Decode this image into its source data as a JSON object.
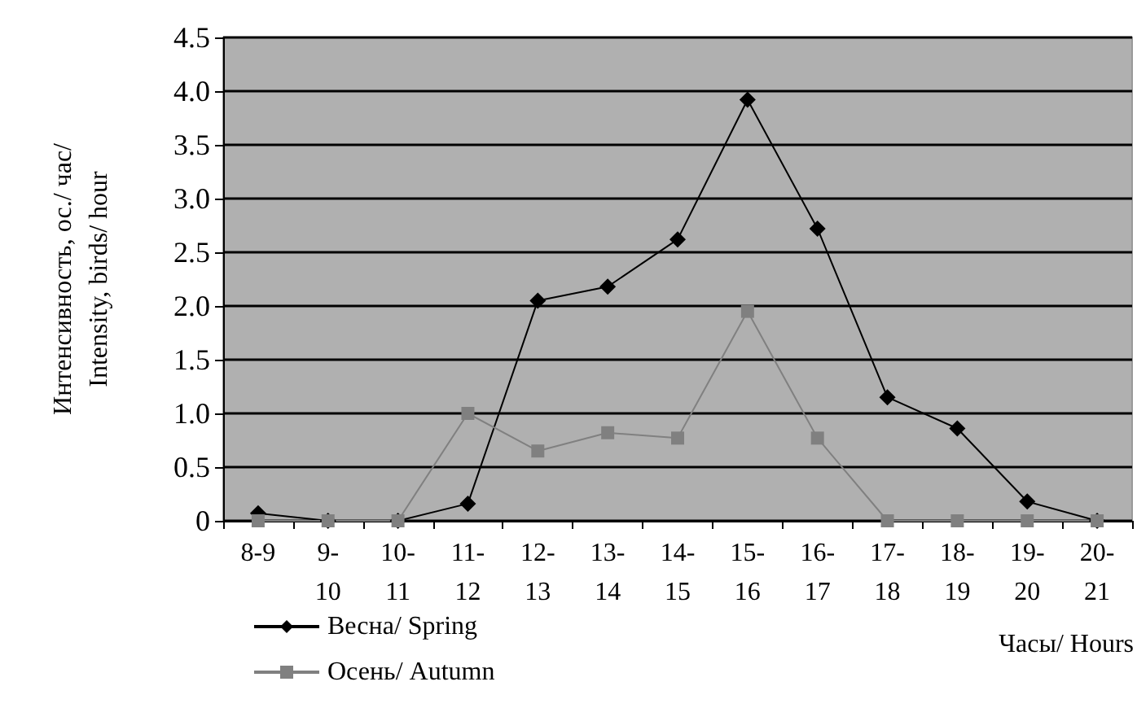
{
  "chart_data": {
    "type": "line",
    "xlabel": "Часы/ Hours",
    "ylabel": "Интенсивность, ос./ час/\nIntensity, birds/ hour",
    "categories": [
      "8-9",
      "9-10",
      "10-11",
      "11-12",
      "12-13",
      "13-14",
      "14-15",
      "15-16",
      "16-17",
      "17-18",
      "18-19",
      "19-20",
      "20-21"
    ],
    "series": [
      {
        "name": "Весна/ Spring",
        "color": "#000000",
        "marker": "diamond",
        "values": [
          0.07,
          0,
          0,
          0.16,
          2.05,
          2.18,
          2.62,
          3.92,
          2.72,
          1.15,
          0.86,
          0.18,
          0
        ]
      },
      {
        "name": "Осень/ Autumn",
        "color": "#808080",
        "marker": "square",
        "values": [
          0,
          0,
          0,
          1.0,
          0.65,
          0.82,
          0.77,
          1.95,
          0.77,
          0,
          0,
          0,
          0
        ]
      }
    ],
    "ylim": [
      0,
      4.5
    ],
    "yticks": [
      0,
      {
        "value": 0.5,
        "label": "0.5"
      },
      {
        "value": 1,
        "label": "1.0"
      },
      {
        "value": 1.5,
        "label": "1.5"
      },
      {
        "value": 2,
        "label": "2.0"
      },
      {
        "value": 2.5,
        "label": "2.5"
      },
      {
        "value": 3,
        "label": "3.0"
      },
      {
        "value": 3.5,
        "label": "3.5"
      },
      {
        "value": 4,
        "label": "4.0"
      },
      {
        "value": 4.5,
        "label": "4.5"
      }
    ],
    "grid": "y",
    "legend": "bottom left"
  }
}
